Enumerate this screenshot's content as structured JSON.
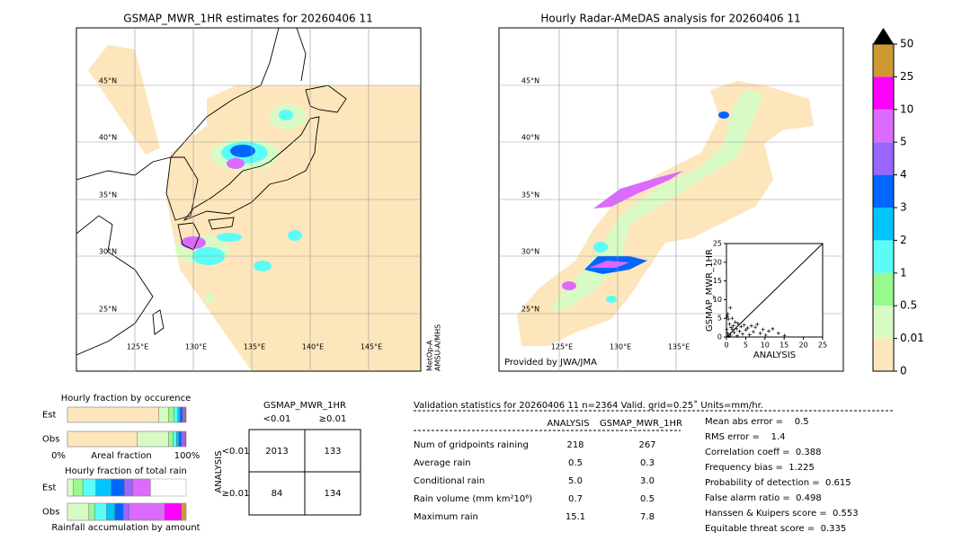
{
  "maps": [
    {
      "title": "GSMAP_MWR_1HR estimates for 20260406 11",
      "lat_labels": [
        "45°N",
        "40°N",
        "35°N",
        "30°N",
        "25°N"
      ],
      "lon_labels": [
        "125°E",
        "130°E",
        "135°E",
        "140°E",
        "145°E"
      ],
      "credit": [
        "MetOp-A",
        "AMSU-A/MHS"
      ]
    },
    {
      "title": "Hourly Radar-AMeDAS analysis for 20260406 11",
      "lat_labels": [
        "45°N",
        "40°N",
        "35°N",
        "30°N",
        "25°N"
      ],
      "lon_labels": [
        "125°E",
        "130°E",
        "135°E"
      ],
      "credit": [
        "Provided by JWA/JMA"
      ]
    }
  ],
  "colorbar": {
    "levels": [
      0,
      0.01,
      0.5,
      1,
      2,
      3,
      4,
      5,
      10,
      25,
      50
    ],
    "colors": [
      "#fde6bc",
      "#d8fbc6",
      "#98f98c",
      "#5cfcf6",
      "#00c5ff",
      "#0066ff",
      "#9966ff",
      "#dc6aff",
      "#ff00ff",
      "#cc9933"
    ]
  },
  "scatter": {
    "type": "scatter",
    "xlabel": "ANALYSIS",
    "ylabel": "GSMAP_MWR_1HR",
    "xlim": [
      0,
      25
    ],
    "ylim": [
      0,
      25
    ],
    "xticks": [
      0,
      5,
      10,
      15,
      20,
      25
    ],
    "yticks": [
      0,
      5,
      10,
      15,
      20,
      25
    ],
    "x": [
      0.2,
      0.4,
      0.5,
      0.8,
      1.0,
      1.2,
      1.5,
      1.8,
      2.0,
      2.3,
      2.6,
      3.0,
      3.4,
      3.8,
      4.2,
      4.6,
      5.0,
      5.5,
      6.0,
      6.5,
      7.0,
      7.5,
      8.0,
      8.8,
      9.5,
      10.2,
      11.0,
      12.0,
      13.5,
      15.1,
      0.1,
      0.3,
      1.1,
      1.6,
      2.8,
      0.6
    ],
    "y": [
      5.5,
      6.2,
      4.8,
      3.5,
      7.8,
      2.5,
      5.0,
      3.0,
      1.2,
      4.0,
      2.2,
      3.6,
      1.5,
      2.8,
      0.8,
      3.2,
      1.9,
      2.4,
      0.6,
      3.0,
      1.4,
      2.6,
      3.4,
      1.0,
      2.0,
      0.5,
      1.6,
      2.2,
      1.0,
      0.4,
      2.0,
      1.0,
      0.5,
      2.0,
      0.3,
      0.2
    ]
  },
  "fractions": {
    "occurrence": {
      "title": "Hourly fraction by occurence",
      "rows": [
        {
          "label": "Est",
          "values": [
            0.77,
            0.08,
            0.05,
            0.03,
            0.02,
            0.02,
            0.01,
            0.01,
            0.01,
            0
          ]
        },
        {
          "label": "Obs",
          "values": [
            0.59,
            0.26,
            0.04,
            0.03,
            0.02,
            0.02,
            0.02,
            0.01,
            0.01,
            0
          ]
        }
      ],
      "axis_left": "0%",
      "axis_label": "Areal fraction",
      "axis_right": "100%"
    },
    "total_rain": {
      "title": "Hourly fraction of total rain",
      "rows": [
        {
          "label": "Est",
          "values": [
            0,
            0.05,
            0.08,
            0.11,
            0.13,
            0.11,
            0.07,
            0.15,
            0,
            0
          ]
        },
        {
          "label": "Obs",
          "values": [
            0,
            0.18,
            0.05,
            0.1,
            0.07,
            0.07,
            0.05,
            0.3,
            0.14,
            0.04
          ]
        }
      ],
      "xlabel": "Rainfall accumulation by amount"
    }
  },
  "contingency": {
    "title": "GSMAP_MWR_1HR",
    "columns": [
      "<0.01",
      "≥0.01"
    ],
    "row_title": "ANALYSIS",
    "rows": [
      "<0.01",
      "≥0.01"
    ],
    "cells": [
      [
        2013,
        133
      ],
      [
        84,
        134
      ]
    ]
  },
  "validation": {
    "title": "Validation statistics for 20260406 11  n=2364 Valid. grid=0.25˚ Units=mm/hr.",
    "columns": [
      "ANALYSIS",
      "GSMAP_MWR_1HR"
    ],
    "rows": [
      {
        "label": "Num of gridpoints raining",
        "values": [
          "218",
          "267"
        ]
      },
      {
        "label": "Average rain",
        "values": [
          "0.5",
          "0.3"
        ]
      },
      {
        "label": "Conditional rain",
        "values": [
          "5.0",
          "3.0"
        ]
      },
      {
        "label": "Rain volume (mm km²10⁶)",
        "values": [
          "0.7",
          "0.5"
        ]
      },
      {
        "label": "Maximum rain",
        "values": [
          "15.1",
          "7.8"
        ]
      }
    ],
    "scores": [
      "Mean abs error =    0.5",
      "RMS error =    1.4",
      "Correlation coeff =  0.388",
      "Frequency bias =  1.225",
      "Probability of detection =  0.615",
      "False alarm ratio =  0.498",
      "Hanssen & Kuipers score =  0.553",
      "Equitable threat score =  0.335"
    ]
  }
}
